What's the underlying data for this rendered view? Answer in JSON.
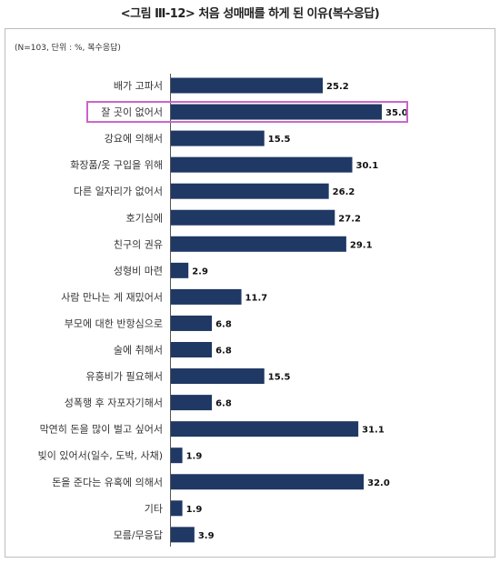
{
  "figure_title": "<그림 Ⅲ-12> 처음 성매매를 하게 된 이유(복수응답)",
  "note": "(N=103, 단위 : %, 복수응답)",
  "colors": {
    "bar": "#1f3864",
    "highlight": "#c964c9"
  },
  "chart_data": {
    "type": "bar",
    "orientation": "horizontal",
    "title": "<그림 Ⅲ-12> 처음 성매매를 하게 된 이유(복수응답)",
    "categories": [
      "배가 고파서",
      "잘 곳이 없어서",
      "강요에 의해서",
      "화장품/옷 구입을 위해",
      "다른 일자리가 없어서",
      "호기심에",
      "친구의 권유",
      "성형비 마련",
      "사람 만나는 게 재밌어서",
      "부모에 대한 반항심으로",
      "술에 취해서",
      "유흥비가 필요해서",
      "성폭행 후 자포자기해서",
      "막연히 돈을 많이 벌고 싶어서",
      "빚이 있어서(일수, 도박, 사채)",
      "돈을 준다는 유혹에 의해서",
      "기타",
      "모름/무응답"
    ],
    "values": [
      25.2,
      35.0,
      15.5,
      30.1,
      26.2,
      27.2,
      29.1,
      2.9,
      11.7,
      6.8,
      6.8,
      15.5,
      6.8,
      31.1,
      1.9,
      32.0,
      1.9,
      3.9
    ],
    "value_labels": [
      "25.2",
      "35.0",
      "15.5",
      "30.1",
      "26.2",
      "27.2",
      "29.1",
      "2.9",
      "11.7",
      "6.8",
      "6.8",
      "15.5",
      "6.8",
      "31.1",
      "1.9",
      "32.0",
      "1.9",
      "3.9"
    ],
    "highlighted_category": "잘 곳이 없어서",
    "xlim": [
      0,
      35
    ],
    "grid": false,
    "legend": "none"
  }
}
